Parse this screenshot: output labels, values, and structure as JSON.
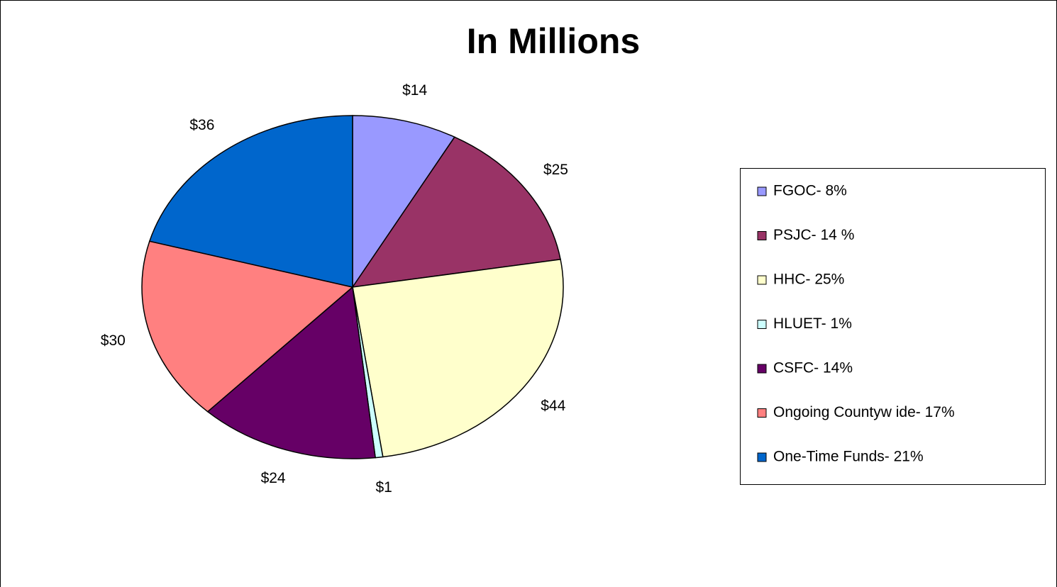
{
  "chart_data": {
    "type": "pie",
    "title": "In Millions",
    "categories": [
      "FGOC- 8%",
      "PSJC- 14 %",
      "HHC- 25%",
      "HLUET- 1%",
      "CSFC- 14%",
      "Ongoing Countyw ide- 17%",
      "One-Time Funds- 21%"
    ],
    "values": [
      14,
      25,
      44,
      1,
      24,
      30,
      36
    ],
    "value_labels": [
      "$14",
      "$25",
      "$44",
      "$1",
      "$24",
      "$30",
      "$36"
    ],
    "colors": [
      "#9999ff",
      "#993366",
      "#ffffcc",
      "#ccffff",
      "#660066",
      "#ff8080",
      "#0066cc"
    ],
    "legend": "right"
  }
}
